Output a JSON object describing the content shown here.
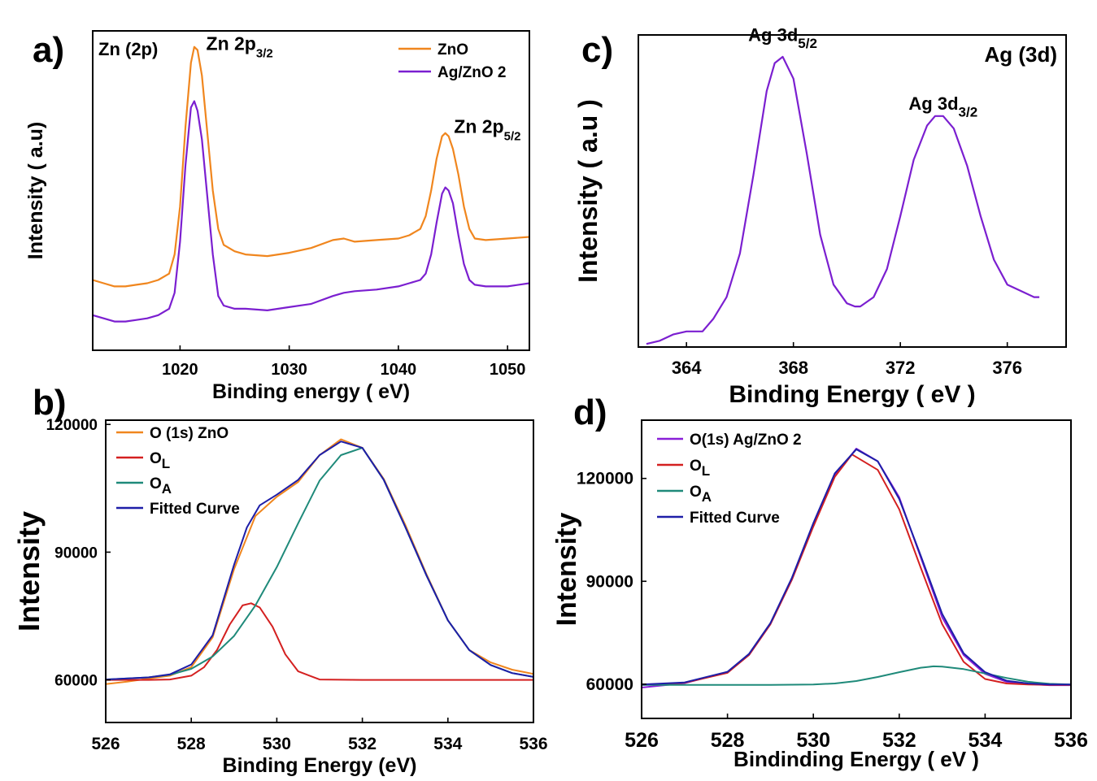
{
  "chart_data": [
    {
      "panel": "a)",
      "type": "line",
      "xlabel": "Binding energy ( eV)",
      "ylabel": "Intensity ( a.u)",
      "xlim": [
        1012,
        1052
      ],
      "ylim": [
        0,
        100
      ],
      "y_ticks_shown": false,
      "xticks": [
        1020,
        1030,
        1040,
        1050
      ],
      "inset_label": "Zn (2p)",
      "annotations": [
        {
          "text": "Zn 2p",
          "sub": "3/2",
          "x": 1021.5,
          "y": 93
        },
        {
          "text": "Zn 2p",
          "sub": "5/2",
          "x": 1044.2,
          "y": 67
        }
      ],
      "legend_position": "top-right",
      "series": [
        {
          "name": "ZnO",
          "color": "#f0861e",
          "x": [
            1012,
            1013,
            1014,
            1015,
            1016,
            1017,
            1018,
            1019,
            1019.5,
            1020,
            1020.5,
            1021,
            1021.3,
            1021.6,
            1022,
            1022.5,
            1023,
            1023.5,
            1024,
            1025,
            1026,
            1028,
            1030,
            1032,
            1034,
            1035,
            1036,
            1038,
            1040,
            1041,
            1042,
            1042.5,
            1043,
            1043.5,
            1044,
            1044.3,
            1044.6,
            1045,
            1045.5,
            1046,
            1046.5,
            1047,
            1048,
            1050,
            1052
          ],
          "y": [
            22,
            21,
            20,
            20,
            20.5,
            21,
            22,
            24,
            30,
            45,
            70,
            90,
            95,
            94,
            86,
            68,
            50,
            38,
            33,
            31,
            30,
            29.5,
            30.5,
            32,
            34.5,
            35,
            34,
            34.5,
            35,
            36,
            38,
            42,
            50,
            60,
            67,
            68,
            67,
            63,
            55,
            45,
            38,
            35,
            34.5,
            35,
            35.5
          ]
        },
        {
          "name": "Ag/ZnO 2",
          "color": "#7b1fd0",
          "x": [
            1012,
            1013,
            1014,
            1015,
            1016,
            1017,
            1018,
            1019,
            1019.5,
            1020,
            1020.5,
            1021,
            1021.3,
            1021.6,
            1022,
            1022.5,
            1023,
            1023.5,
            1024,
            1025,
            1026,
            1028,
            1030,
            1032,
            1034,
            1035,
            1036,
            1038,
            1040,
            1041,
            1042,
            1042.5,
            1043,
            1043.5,
            1044,
            1044.3,
            1044.6,
            1045,
            1045.5,
            1046,
            1046.5,
            1047,
            1048,
            1050,
            1052
          ],
          "y": [
            11,
            10,
            9,
            9,
            9.5,
            10,
            11,
            13,
            18,
            34,
            58,
            76,
            78,
            75,
            66,
            48,
            30,
            17,
            14,
            13,
            13,
            12.5,
            13.5,
            14.5,
            17,
            18,
            18.5,
            19,
            20,
            21,
            22,
            24,
            30,
            40,
            49,
            51,
            50,
            46,
            36,
            27,
            22,
            20.5,
            20,
            20,
            21
          ]
        }
      ]
    },
    {
      "panel": "b)",
      "type": "line",
      "xlabel": "Binding Energy (eV)",
      "ylabel": "Intensity",
      "xlim": [
        526,
        536
      ],
      "ylim": [
        50000,
        121000
      ],
      "xticks": [
        526,
        528,
        530,
        532,
        534,
        536
      ],
      "yticks": [
        60000,
        90000,
        120000
      ],
      "ytick_labels": [
        "60000",
        "90000",
        "120000"
      ],
      "legend_position": "top-left",
      "legend_labels": [
        {
          "text": "O (1s) ZnO"
        },
        {
          "text": "O",
          "sub": "L"
        },
        {
          "text": "O",
          "sub": "A"
        },
        {
          "text": "Fitted Curve"
        }
      ],
      "series": [
        {
          "name": "O (1s) ZnO",
          "color": "#f0861e",
          "x": [
            526,
            526.5,
            527,
            527.5,
            528,
            528.5,
            529,
            529.5,
            530,
            530.5,
            531,
            531.5,
            532,
            532.5,
            533,
            533.5,
            534,
            534.5,
            535,
            535.5,
            536
          ],
          "y": [
            59000,
            59600,
            60300,
            61000,
            63000,
            70000,
            86000,
            98500,
            103000,
            106500,
            112800,
            116500,
            114500,
            107200,
            96500,
            84800,
            74000,
            67000,
            64100,
            62400,
            61400
          ]
        },
        {
          "name": "O_L",
          "color": "#d42020",
          "x": [
            526,
            527,
            527.5,
            528,
            528.3,
            528.6,
            528.9,
            529.2,
            529.4,
            529.6,
            529.9,
            530.2,
            530.5,
            531,
            532,
            534,
            536
          ],
          "y": [
            60000,
            60000,
            60100,
            61000,
            63000,
            67000,
            73000,
            77500,
            78000,
            77000,
            72500,
            66000,
            62000,
            60100,
            60000,
            60000,
            60000
          ]
        },
        {
          "name": "O_A",
          "color": "#1f8a7a",
          "x": [
            526,
            527,
            527.5,
            528,
            528.5,
            529,
            529.5,
            530,
            530.5,
            531,
            531.5,
            532,
            532.5,
            533,
            533.5,
            534,
            534.5,
            535,
            535.5,
            536
          ],
          "y": [
            60100,
            60600,
            61200,
            62600,
            65500,
            70300,
            77500,
            86500,
            96800,
            106800,
            112800,
            114500,
            107000,
            96000,
            84500,
            74000,
            67000,
            63500,
            61600,
            60700
          ]
        },
        {
          "name": "Fitted Curve",
          "color": "#1e1ea8",
          "x": [
            526,
            527,
            527.5,
            528,
            528.5,
            529,
            529.3,
            529.6,
            530,
            530.5,
            531,
            531.5,
            532,
            532.5,
            533,
            533.5,
            534,
            534.5,
            535,
            535.5,
            536
          ],
          "y": [
            60100,
            60600,
            61300,
            63600,
            70500,
            87000,
            95800,
            101000,
            103500,
            107000,
            112800,
            116000,
            114500,
            107000,
            96000,
            84500,
            74000,
            67000,
            63500,
            61600,
            60700
          ]
        }
      ]
    },
    {
      "panel": "c)",
      "type": "line",
      "xlabel": "Binding Energy ( eV )",
      "ylabel": "Intensity ( a.u )",
      "xlim": [
        362.2,
        378.2
      ],
      "ylim": [
        0,
        100
      ],
      "y_ticks_shown": false,
      "xticks": [
        364,
        368,
        372,
        376
      ],
      "inset_label": "Ag (3d)",
      "annotations": [
        {
          "text": "Ag  3d",
          "sub": "5/2",
          "x": 367.6,
          "y": 97
        },
        {
          "text": "Ag  3d",
          "sub": "3/2",
          "x": 373.6,
          "y": 75
        }
      ],
      "series": [
        {
          "name": "Ag (3d)",
          "color": "#7b1fd0",
          "x": [
            362.5,
            363,
            363.5,
            364,
            364.3,
            364.6,
            365,
            365.5,
            366,
            366.5,
            367,
            367.3,
            367.6,
            368,
            368.5,
            369,
            369.5,
            370,
            370.3,
            370.5,
            371,
            371.5,
            372,
            372.5,
            373,
            373.3,
            373.6,
            374,
            374.5,
            375,
            375.5,
            376,
            376.5,
            377,
            377.2
          ],
          "y": [
            1,
            2,
            4,
            5,
            5,
            5,
            9,
            16,
            30,
            55,
            82,
            91,
            93,
            86,
            62,
            36,
            20,
            14,
            13,
            13,
            16,
            25,
            42,
            60,
            71,
            74,
            74,
            70,
            58,
            42,
            28,
            20,
            18,
            16,
            16
          ]
        }
      ]
    },
    {
      "panel": "d)",
      "type": "line",
      "xlabel": "Bindinding Energy ( eV )",
      "ylabel": "Intensity",
      "xlim": [
        526,
        536
      ],
      "ylim": [
        50000,
        137000
      ],
      "xticks": [
        526,
        528,
        530,
        532,
        534,
        536
      ],
      "yticks": [
        60000,
        90000,
        120000
      ],
      "ytick_labels": [
        "60000",
        "90000",
        "120000"
      ],
      "legend_position": "top-left",
      "legend_labels": [
        {
          "text": "O(1s) Ag/ZnO 2"
        },
        {
          "text": "O",
          "sub": "L"
        },
        {
          "text": "O",
          "sub": "A"
        },
        {
          "text": "Fitted Curve"
        }
      ],
      "series": [
        {
          "name": "O(1s) Ag/ZnO 2",
          "color": "#8a1fd8",
          "x": [
            526,
            527,
            528,
            528.5,
            529,
            529.5,
            530,
            530.5,
            531,
            531.5,
            532,
            532.5,
            533,
            533.5,
            534,
            534.5,
            535,
            535.5,
            536
          ],
          "y": [
            59000,
            60300,
            63500,
            68500,
            77500,
            90500,
            106500,
            120800,
            128700,
            125000,
            114500,
            97000,
            79500,
            68500,
            63000,
            60700,
            60000,
            59700,
            59700
          ]
        },
        {
          "name": "O_L",
          "color": "#d42020",
          "x": [
            526,
            527,
            528,
            528.5,
            529,
            529.5,
            530,
            530.5,
            530.9,
            531.5,
            532,
            532.5,
            533,
            533.5,
            534,
            534.5,
            535,
            535.5,
            536
          ],
          "y": [
            59800,
            60400,
            63300,
            68500,
            77500,
            90500,
            106000,
            120500,
            127000,
            122500,
            111000,
            94000,
            77500,
            66500,
            61500,
            60200,
            59900,
            59800,
            59800
          ]
        },
        {
          "name": "O_A",
          "color": "#1f8a7a",
          "x": [
            526,
            528,
            529,
            530,
            530.5,
            531,
            531.5,
            532,
            532.5,
            532.8,
            533,
            533.5,
            534,
            534.5,
            535,
            535.5,
            536
          ],
          "y": [
            59800,
            59800,
            59800,
            59900,
            60200,
            60900,
            62100,
            63500,
            64800,
            65200,
            65100,
            64400,
            63100,
            61800,
            60700,
            60100,
            59900
          ]
        },
        {
          "name": "Fitted Curve",
          "color": "#1e1ea8",
          "x": [
            526,
            527,
            528,
            528.5,
            529,
            529.5,
            530,
            530.5,
            531,
            531.5,
            532,
            532.5,
            533,
            533.5,
            534,
            534.5,
            535,
            535.5,
            536
          ],
          "y": [
            59900,
            60500,
            63600,
            68800,
            77800,
            91000,
            107000,
            121500,
            128500,
            125000,
            114000,
            97500,
            80500,
            69000,
            63500,
            61000,
            60200,
            59900,
            59900
          ]
        }
      ]
    }
  ]
}
